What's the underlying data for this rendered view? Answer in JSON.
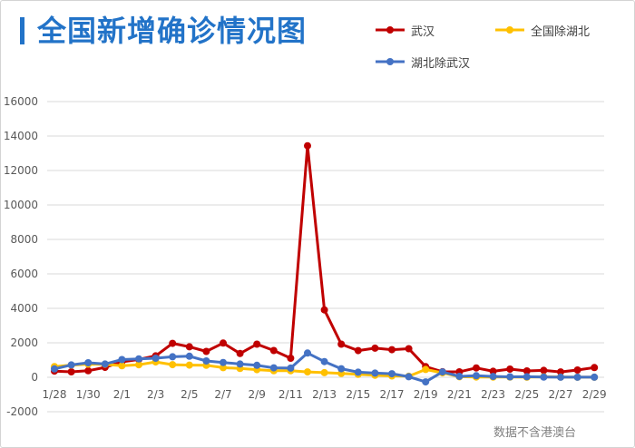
{
  "theme": {
    "accent": "#2273c8"
  },
  "chart_data": {
    "type": "line",
    "title": "全国新增确诊情况图",
    "x": [
      "1/28",
      "1/29",
      "1/30",
      "1/31",
      "2/1",
      "2/2",
      "2/3",
      "2/4",
      "2/5",
      "2/6",
      "2/7",
      "2/8",
      "2/9",
      "2/10",
      "2/11",
      "2/12",
      "2/13",
      "2/14",
      "2/15",
      "2/16",
      "2/17",
      "2/18",
      "2/19",
      "2/20",
      "2/21",
      "2/22",
      "2/23",
      "2/24",
      "2/25",
      "2/26",
      "2/27",
      "2/28",
      "2/29"
    ],
    "series": [
      {
        "name": "武汉",
        "color": "#c00000",
        "values": [
          356,
          315,
          378,
          576,
          894,
          1033,
          1242,
          1967,
          1766,
          1501,
          1985,
          1379,
          1921,
          1552,
          1104,
          13436,
          3910,
          1923,
          1548,
          1690,
          1600,
          1660,
          615,
          319,
          314,
          541,
          348,
          474,
          370,
          401,
          313,
          420,
          565
        ]
      },
      {
        "name": "全国除湖北",
        "color": "#ffc000",
        "values": [
          619,
          705,
          762,
          755,
          669,
          726,
          890,
          731,
          707,
          696,
          558,
          509,
          444,
          381,
          377,
          312,
          267,
          221,
          166,
          115,
          79,
          56,
          450,
          258,
          31,
          18,
          11,
          9,
          5,
          24,
          9,
          4,
          3
        ]
      },
      {
        "name": "湖北除武汉",
        "color": "#4472c4",
        "values": [
          484,
          717,
          842,
          771,
          1027,
          1070,
          1103,
          1189,
          1221,
          946,
          856,
          768,
          697,
          545,
          534,
          1404,
          913,
          497,
          295,
          243,
          207,
          33,
          -266,
          312,
          52,
          89,
          50,
          25,
          31,
          8,
          5,
          3,
          5
        ]
      }
    ],
    "ylim": [
      -2000,
      16000
    ],
    "yticks": [
      -2000,
      0,
      2000,
      4000,
      6000,
      8000,
      10000,
      12000,
      14000,
      16000
    ],
    "grid": true,
    "legend": "top-right",
    "footnote": "数据不含港澳台"
  }
}
